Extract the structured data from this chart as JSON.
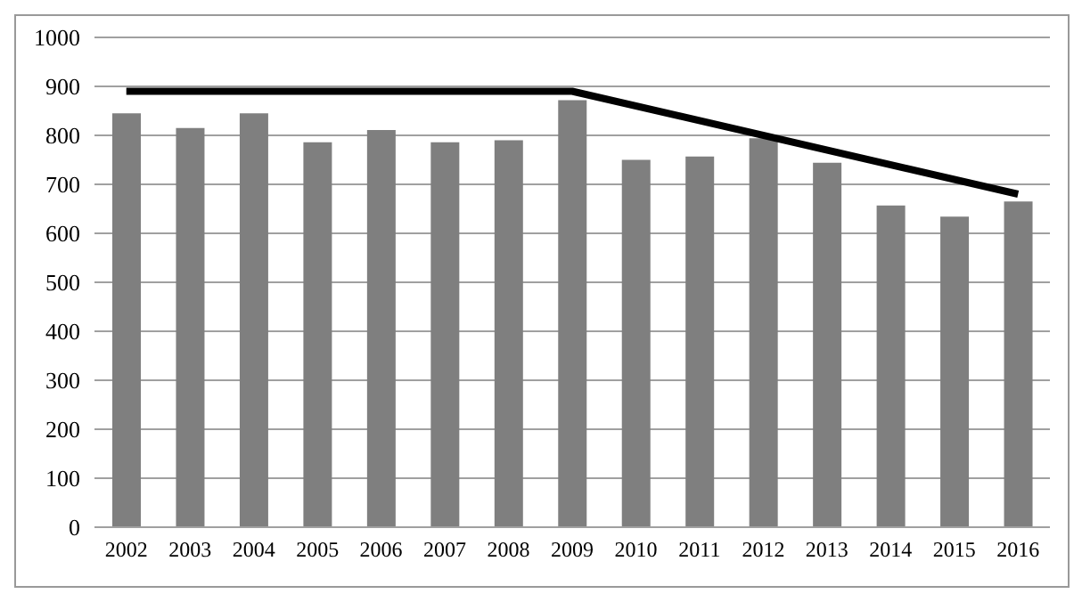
{
  "chart_data": {
    "type": "bar",
    "categories": [
      "2002",
      "2003",
      "2004",
      "2005",
      "2006",
      "2007",
      "2008",
      "2009",
      "2010",
      "2011",
      "2012",
      "2013",
      "2014",
      "2015",
      "2016"
    ],
    "series": [
      {
        "color": "#7f7f7f",
        "values": [
          845,
          815,
          845,
          786,
          811,
          786,
          790,
          872,
          750,
          757,
          794,
          744,
          657,
          634,
          665
        ]
      },
      {
        "type": "line",
        "color": "#000000",
        "values": [
          890,
          null,
          null,
          null,
          null,
          null,
          null,
          890,
          null,
          null,
          null,
          null,
          null,
          null,
          680
        ]
      }
    ],
    "ylim": [
      0,
      1000
    ],
    "yticks": [
      0,
      100,
      200,
      300,
      400,
      500,
      600,
      700,
      800,
      900,
      1000
    ],
    "grid": "y",
    "legend": false,
    "marker": "none",
    "line_style": "solid"
  }
}
